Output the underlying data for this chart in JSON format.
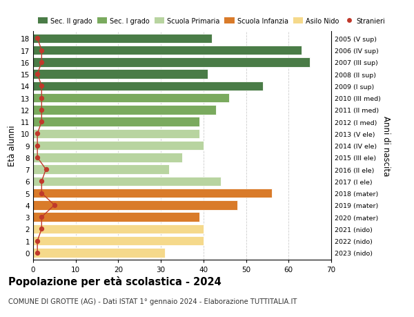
{
  "ages": [
    18,
    17,
    16,
    15,
    14,
    13,
    12,
    11,
    10,
    9,
    8,
    7,
    6,
    5,
    4,
    3,
    2,
    1,
    0
  ],
  "bar_values": [
    42,
    63,
    65,
    41,
    54,
    46,
    43,
    39,
    39,
    40,
    35,
    32,
    44,
    56,
    48,
    39,
    40,
    40,
    31
  ],
  "bar_colors": [
    "#4a7c47",
    "#4a7c47",
    "#4a7c47",
    "#4a7c47",
    "#4a7c47",
    "#7aaa5e",
    "#7aaa5e",
    "#7aaa5e",
    "#b8d4a0",
    "#b8d4a0",
    "#b8d4a0",
    "#b8d4a0",
    "#b8d4a0",
    "#d97b2a",
    "#d97b2a",
    "#d97b2a",
    "#f5d98b",
    "#f5d98b",
    "#f5d98b"
  ],
  "stranieri_values": [
    1,
    2,
    2,
    1,
    2,
    2,
    2,
    2,
    1,
    1,
    1,
    3,
    2,
    2,
    5,
    2,
    2,
    1,
    1
  ],
  "right_labels": [
    "2005 (V sup)",
    "2006 (IV sup)",
    "2007 (III sup)",
    "2008 (II sup)",
    "2009 (I sup)",
    "2010 (III med)",
    "2011 (II med)",
    "2012 (I med)",
    "2013 (V ele)",
    "2014 (IV ele)",
    "2015 (III ele)",
    "2016 (II ele)",
    "2017 (I ele)",
    "2018 (mater)",
    "2019 (mater)",
    "2020 (mater)",
    "2021 (nido)",
    "2022 (nido)",
    "2023 (nido)"
  ],
  "legend_labels": [
    "Sec. II grado",
    "Sec. I grado",
    "Scuola Primaria",
    "Scuola Infanzia",
    "Asilo Nido",
    "Stranieri"
  ],
  "legend_colors": [
    "#4a7c47",
    "#7aaa5e",
    "#b8d4a0",
    "#d97b2a",
    "#f5d98b",
    "#c0392b"
  ],
  "ylabel": "Età alunni",
  "right_ylabel": "Anni di nascita",
  "title": "Popolazione per età scolastica - 2024",
  "subtitle": "COMUNE DI GROTTE (AG) - Dati ISTAT 1° gennaio 2024 - Elaborazione TUTTITALIA.IT",
  "xlim": [
    0,
    70
  ],
  "xticks": [
    0,
    10,
    20,
    30,
    40,
    50,
    60,
    70
  ],
  "bg_color": "#ffffff",
  "bar_height": 0.78
}
